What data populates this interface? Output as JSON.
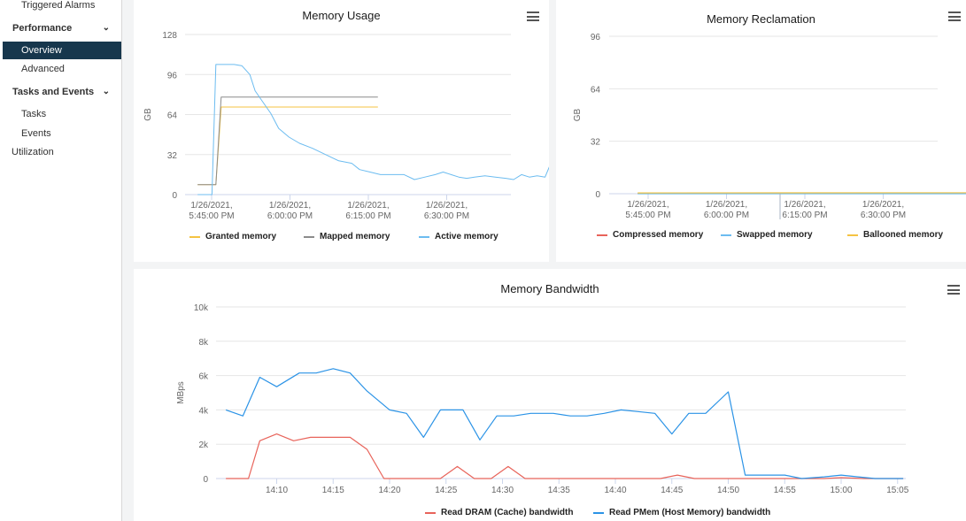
{
  "sidebar": {
    "items": [
      {
        "label": "Triggered Alarms"
      },
      {
        "label": "Performance",
        "chevron": "chevron-down-icon"
      },
      {
        "label": "Overview",
        "selected": true
      },
      {
        "label": "Advanced"
      },
      {
        "label": "Tasks and Events",
        "chevron": "chevron-down-icon"
      },
      {
        "label": "Tasks"
      },
      {
        "label": "Events"
      },
      {
        "label": "Utilization"
      }
    ]
  },
  "colors": {
    "selected_bg": "#17374d",
    "granted": "#f5c342",
    "mapped": "#8c8c8c",
    "active": "#6cbcf0",
    "compressed": "#e8635a",
    "swapped": "#6cbcf0",
    "ballooned": "#f5c342",
    "dram": "#e8635a",
    "pmem": "#2b93e6"
  },
  "charts": {
    "usage": {
      "menu_icon": "hamburger-menu-icon",
      "chart_data": {
        "type": "line",
        "title": "Memory Usage",
        "ylabel": "GB",
        "ylim": [
          0,
          128
        ],
        "yticks": [
          "0",
          "32",
          "64",
          "96",
          "128"
        ],
        "xticks": [
          {
            "line1": "1/26/2021,",
            "line2": "5:45:00 PM"
          },
          {
            "line1": "1/26/2021,",
            "line2": "6:00:00 PM"
          },
          {
            "line1": "1/26/2021,",
            "line2": "6:15:00 PM"
          },
          {
            "line1": "1/26/2021,",
            "line2": "6:30:00 PM"
          }
        ],
        "series": [
          {
            "name": "Granted memory",
            "values": [
              [
                -0.4,
                8
              ],
              [
                0.3,
                8
              ],
              [
                0.5,
                70
              ],
              [
                2.8,
                70
              ],
              [
                6.5,
                70
              ]
            ]
          },
          {
            "name": "Mapped memory",
            "values": [
              [
                -0.4,
                8
              ],
              [
                0.3,
                8
              ],
              [
                0.5,
                78
              ],
              [
                2.8,
                78
              ],
              [
                6.5,
                78
              ]
            ]
          },
          {
            "name": "Active memory",
            "values": [
              [
                -0.4,
                0
              ],
              [
                0.15,
                0
              ],
              [
                0.3,
                104
              ],
              [
                1.0,
                104
              ],
              [
                1.3,
                103
              ],
              [
                1.6,
                96
              ],
              [
                1.8,
                83
              ],
              [
                2.1,
                74
              ],
              [
                2.4,
                65
              ],
              [
                2.7,
                53
              ],
              [
                3.1,
                46
              ],
              [
                3.5,
                41
              ],
              [
                4.0,
                37
              ],
              [
                4.5,
                32
              ],
              [
                5.0,
                27
              ],
              [
                5.5,
                25
              ],
              [
                5.8,
                20
              ],
              [
                6.2,
                18
              ],
              [
                6.6,
                16
              ],
              [
                7.0,
                16
              ],
              [
                7.5,
                16
              ],
              [
                7.9,
                12
              ],
              [
                8.3,
                14
              ],
              [
                8.7,
                16
              ],
              [
                9.0,
                18
              ],
              [
                9.3,
                16
              ],
              [
                9.6,
                14
              ],
              [
                9.9,
                13
              ],
              [
                10.2,
                14
              ],
              [
                10.6,
                15
              ],
              [
                11.0,
                14
              ],
              [
                11.4,
                13
              ],
              [
                11.7,
                12
              ],
              [
                12.0,
                16
              ],
              [
                12.3,
                14
              ],
              [
                12.6,
                15
              ],
              [
                12.9,
                14
              ],
              [
                13.2,
                29
              ],
              [
                13.6,
                29
              ]
            ]
          }
        ]
      }
    },
    "reclamation": {
      "menu_icon": "hamburger-menu-icon",
      "chart_data": {
        "type": "line",
        "title": "Memory Reclamation",
        "ylabel": "GB",
        "ylim": [
          0,
          96
        ],
        "yticks": [
          "0",
          "32",
          "64",
          "96"
        ],
        "xticks": [
          {
            "line1": "1/26/2021,",
            "line2": "5:45:00 PM"
          },
          {
            "line1": "1/26/2021,",
            "line2": "6:00:00 PM"
          },
          {
            "line1": "1/26/2021,",
            "line2": "6:15:00 PM"
          },
          {
            "line1": "1/26/2021,",
            "line2": "6:30:00 PM"
          }
        ],
        "series": [
          {
            "name": "Compressed memory",
            "values": [
              [
                -0.4,
                0.2
              ],
              [
                13.6,
                0.3
              ]
            ]
          },
          {
            "name": "Swapped memory",
            "values": [
              [
                -0.4,
                0
              ],
              [
                13.6,
                0
              ]
            ]
          },
          {
            "name": "Ballooned memory",
            "values": [
              [
                -0.4,
                0.5
              ],
              [
                13.6,
                0.6
              ]
            ]
          }
        ]
      }
    },
    "bandwidth": {
      "menu_icon": "hamburger-menu-icon",
      "chart_data": {
        "type": "line",
        "title": "Memory Bandwidth",
        "ylabel": "MBps",
        "ylim": [
          0,
          10000
        ],
        "yticks": [
          "0",
          "2k",
          "4k",
          "6k",
          "8k",
          "10k"
        ],
        "xticks": [
          "14:10",
          "14:15",
          "14:20",
          "14:25",
          "14:30",
          "14:35",
          "14:40",
          "14:45",
          "14:50",
          "14:55",
          "15:00",
          "15:05"
        ],
        "series": [
          {
            "name": "Read DRAM (Cache) bandwidth",
            "values": [
              [
                5.5,
                0
              ],
              [
                7.5,
                0
              ],
              [
                8.5,
                2200
              ],
              [
                10,
                2600
              ],
              [
                11.5,
                2200
              ],
              [
                13,
                2400
              ],
              [
                15,
                2400
              ],
              [
                16.5,
                2400
              ],
              [
                18,
                1700
              ],
              [
                19.5,
                0
              ],
              [
                21,
                0
              ],
              [
                23,
                0
              ],
              [
                24.5,
                0
              ],
              [
                26,
                700
              ],
              [
                27.5,
                0
              ],
              [
                29,
                0
              ],
              [
                30.5,
                700
              ],
              [
                32,
                0
              ],
              [
                34,
                0
              ],
              [
                36,
                0
              ],
              [
                38,
                0
              ],
              [
                40,
                0
              ],
              [
                42,
                0
              ],
              [
                44,
                0
              ],
              [
                45.5,
                200
              ],
              [
                47,
                0
              ],
              [
                49,
                0
              ],
              [
                51,
                0
              ],
              [
                53,
                0
              ],
              [
                55,
                0
              ],
              [
                57,
                0
              ],
              [
                58.5,
                0
              ],
              [
                60,
                50
              ],
              [
                62,
                0
              ],
              [
                64,
                0
              ],
              [
                65.5,
                0
              ]
            ]
          },
          {
            "name": "Read PMem (Host Memory) bandwidth",
            "values": [
              [
                5.5,
                4000
              ],
              [
                7,
                3650
              ],
              [
                8.5,
                5900
              ],
              [
                10,
                5350
              ],
              [
                12,
                6150
              ],
              [
                13.5,
                6150
              ],
              [
                15,
                6400
              ],
              [
                16.5,
                6150
              ],
              [
                18,
                5100
              ],
              [
                20,
                4000
              ],
              [
                21.5,
                3800
              ],
              [
                23,
                2400
              ],
              [
                24.5,
                4000
              ],
              [
                26.5,
                4000
              ],
              [
                28,
                2250
              ],
              [
                29.5,
                3650
              ],
              [
                31,
                3650
              ],
              [
                32.5,
                3800
              ],
              [
                34.5,
                3800
              ],
              [
                36,
                3650
              ],
              [
                37.5,
                3650
              ],
              [
                39,
                3800
              ],
              [
                40.5,
                4000
              ],
              [
                42,
                3900
              ],
              [
                43.5,
                3800
              ],
              [
                45,
                2600
              ],
              [
                46.5,
                3800
              ],
              [
                48,
                3800
              ],
              [
                50,
                5050
              ],
              [
                51.5,
                200
              ],
              [
                53.5,
                200
              ],
              [
                55,
                200
              ],
              [
                56.5,
                0
              ],
              [
                58.5,
                100
              ],
              [
                60,
                200
              ],
              [
                61.5,
                100
              ],
              [
                63,
                0
              ],
              [
                65.5,
                0
              ]
            ]
          }
        ]
      }
    }
  }
}
